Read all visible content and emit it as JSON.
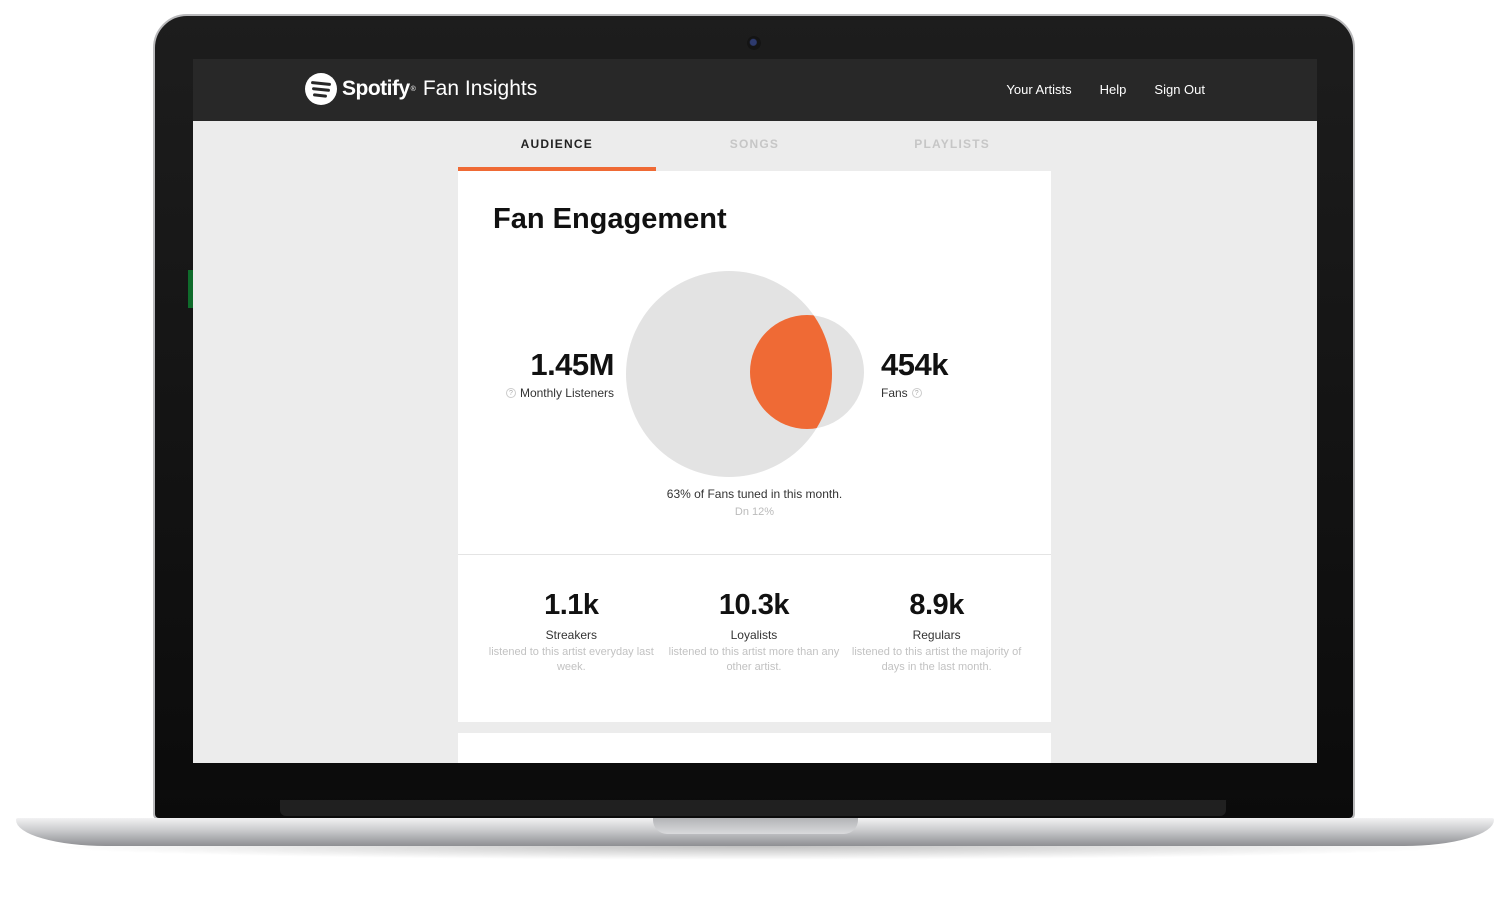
{
  "header": {
    "brand": "Spotify",
    "brand_mark": "®",
    "product": "Fan Insights",
    "nav": [
      "Your Artists",
      "Help",
      "Sign Out"
    ]
  },
  "tabs": [
    {
      "label": "AUDIENCE",
      "active": true
    },
    {
      "label": "SONGS",
      "active": false
    },
    {
      "label": "PLAYLISTS",
      "active": false
    }
  ],
  "engagement": {
    "title": "Fan Engagement",
    "monthly_listeners": {
      "value": "1.45M",
      "label": "Monthly Listeners"
    },
    "fans": {
      "value": "454k",
      "label": "Fans"
    },
    "help_glyph": "?",
    "caption": "63% of Fans tuned in this month.",
    "change": "Dn 12%"
  },
  "segments": [
    {
      "value": "1.1k",
      "label": "Streakers",
      "desc": "listened to this artist everyday last week."
    },
    {
      "value": "10.3k",
      "label": "Loyalists",
      "desc": "listened to this artist more than any other artist."
    },
    {
      "value": "8.9k",
      "label": "Regulars",
      "desc": "listened to this artist the majority of days in the last month."
    }
  ],
  "colors": {
    "accent": "#ef6a35",
    "venn_gray": "#e3e3e3",
    "header_bg": "#282828",
    "page_bg": "#ececec"
  },
  "icons": {
    "logo": "spotify-logo-icon",
    "help": "help-icon",
    "camera": "camera-icon"
  }
}
